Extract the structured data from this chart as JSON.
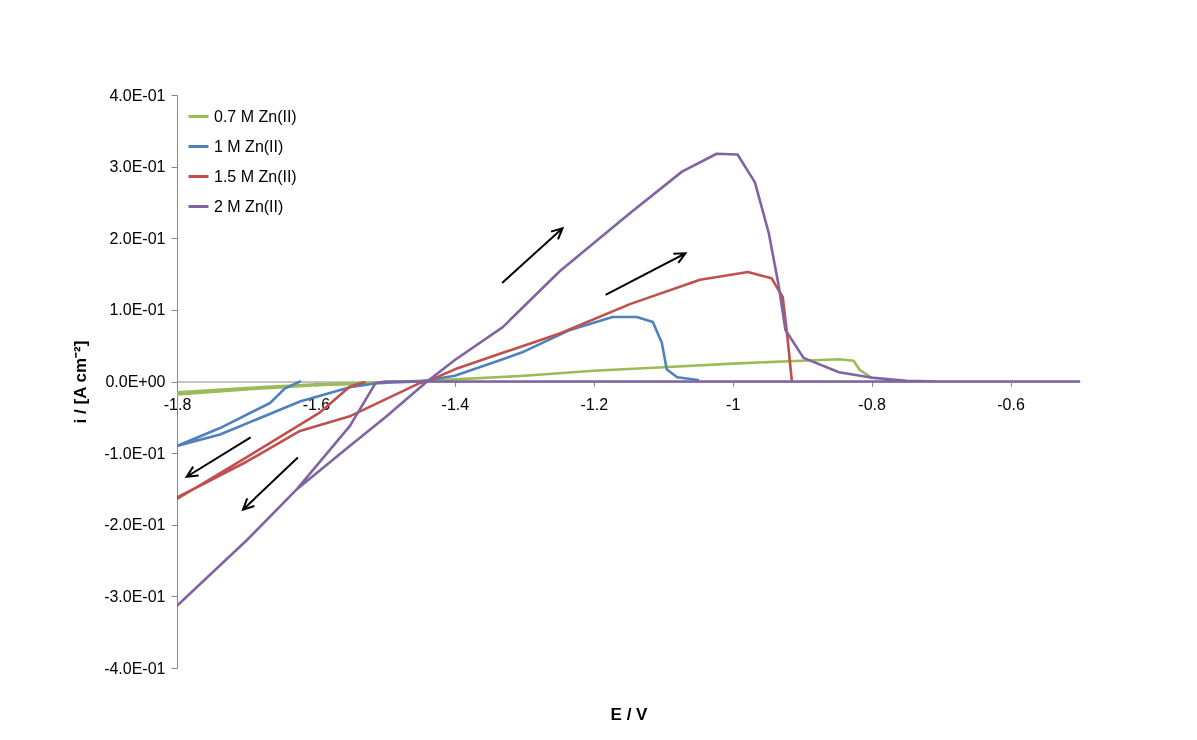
{
  "chart_data": {
    "type": "line",
    "xlabel": "E / V",
    "ylabel": "i / [A cm⁻²]",
    "xlim": [
      -1.8,
      -0.5
    ],
    "xticks": [
      -1.8,
      -1.6,
      -1.4,
      -1.2,
      -1,
      -0.8,
      -0.6
    ],
    "ylim": [
      -0.4,
      0.4
    ],
    "yticks": [
      {
        "value": -0.4,
        "label": "-4.0E-01"
      },
      {
        "value": -0.3,
        "label": "-3.0E-01"
      },
      {
        "value": -0.2,
        "label": "-2.0E-01"
      },
      {
        "value": -0.1,
        "label": "-1.0E-01"
      },
      {
        "value": 0,
        "label": "0.0E+00"
      },
      {
        "value": 0.1,
        "label": "1.0E-01"
      },
      {
        "value": 0.2,
        "label": "2.0E-01"
      },
      {
        "value": 0.3,
        "label": "3.0E-01"
      },
      {
        "value": 0.4,
        "label": "4.0E-01"
      }
    ],
    "legend": "top left",
    "series": [
      {
        "name": "0.7 M Zn(II)",
        "color": "#9bbb59",
        "x": [
          -1.5,
          -1.6,
          -1.7,
          -1.8,
          -1.8,
          -1.7,
          -1.6,
          -1.5,
          -1.4,
          -1.3,
          -1.2,
          -1.1,
          -1.0,
          -0.9,
          -0.847,
          -0.826,
          -0.817,
          -0.8
        ],
        "values": [
          -0.002,
          -0.005,
          -0.011,
          -0.018,
          -0.015,
          -0.009,
          -0.004,
          -0.001,
          0.003,
          0.008,
          0.015,
          0.02,
          0.025,
          0.029,
          0.031,
          0.029,
          0.016,
          0.005
        ]
      },
      {
        "name": "1 M Zn(II)",
        "color": "#4f81bd",
        "x": [
          -1.623,
          -1.645,
          -1.666,
          -1.738,
          -1.8,
          -1.8,
          -1.738,
          -1.623,
          -1.551,
          -1.51,
          -1.45,
          -1.4,
          -1.331,
          -1.3,
          -1.234,
          -1.2,
          -1.173,
          -1.138,
          -1.115,
          -1.102,
          -1.095,
          -1.08,
          -1.05
        ],
        "values": [
          0,
          -0.01,
          -0.03,
          -0.065,
          -0.09,
          -0.09,
          -0.074,
          -0.028,
          -0.008,
          -0.002,
          0,
          0.008,
          0.031,
          0.042,
          0.072,
          0.082,
          0.09,
          0.09,
          0.083,
          0.054,
          0.017,
          0.006,
          0.002
        ]
      },
      {
        "name": "1.5 M Zn(II)",
        "color": "#c0504d",
        "x": [
          -1.53,
          -1.551,
          -1.594,
          -1.7,
          -1.8,
          -1.8,
          -1.7,
          -1.623,
          -1.55,
          -1.5,
          -1.45,
          -1.44,
          -1.4,
          -1.331,
          -1.249,
          -1.148,
          -1.047,
          -0.978,
          -0.944,
          -0.928,
          -0.921,
          -0.915
        ],
        "values": [
          -0.001,
          -0.007,
          -0.043,
          -0.106,
          -0.164,
          -0.162,
          -0.112,
          -0.069,
          -0.048,
          -0.025,
          -0.002,
          0,
          0.017,
          0.04,
          0.067,
          0.108,
          0.142,
          0.153,
          0.144,
          0.118,
          0.06,
          0.002
        ]
      },
      {
        "name": "2 M Zn(II)",
        "color": "#8064a2",
        "x": [
          -0.5,
          -1.0,
          -1.4,
          -1.5,
          -1.514,
          -1.551,
          -1.627,
          -1.7,
          -1.8,
          -1.8,
          -1.7,
          -1.627,
          -1.55,
          -1.5,
          -1.44,
          -1.4,
          -1.331,
          -1.249,
          -1.148,
          -1.073,
          -1.023,
          -0.993,
          -0.968,
          -0.948,
          -0.934,
          -0.924,
          -0.898,
          -0.847,
          -0.797,
          -0.75,
          -0.7
        ],
        "values": [
          0,
          0,
          0,
          0,
          -0.002,
          -0.062,
          -0.15,
          -0.222,
          -0.313,
          -0.313,
          -0.222,
          -0.15,
          -0.089,
          -0.05,
          0,
          0.03,
          0.076,
          0.154,
          0.235,
          0.293,
          0.318,
          0.317,
          0.278,
          0.207,
          0.135,
          0.072,
          0.033,
          0.013,
          0.005,
          0.001,
          0
        ]
      }
    ]
  }
}
